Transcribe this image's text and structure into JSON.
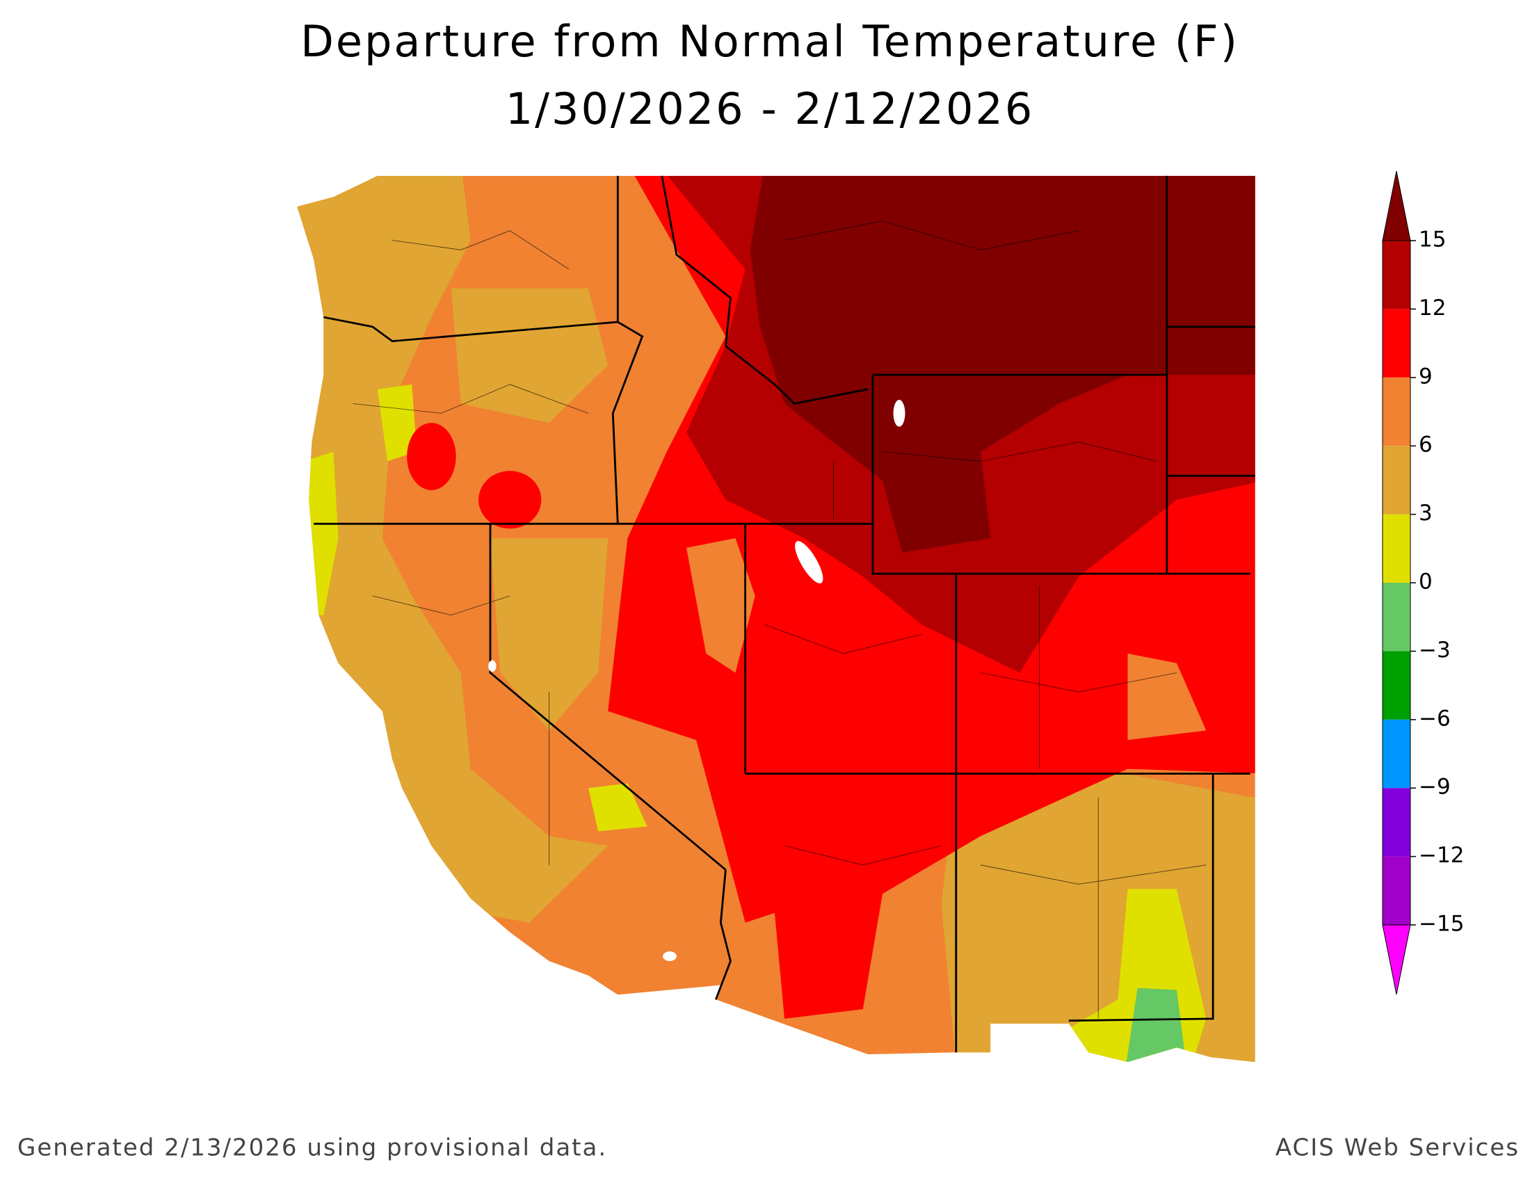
{
  "title": "Departure from Normal Temperature (F)",
  "subtitle": "1/30/2026 - 2/12/2026",
  "legend": {
    "ticks": [
      15,
      12,
      9,
      6,
      3,
      0,
      {
        "value": -3,
        "label": "−3"
      },
      {
        "value": -6,
        "label": "−6"
      },
      {
        "value": -9,
        "label": "−9"
      },
      {
        "value": -12,
        "label": "−12"
      },
      {
        "value": -15,
        "label": "−15"
      }
    ],
    "colors": [
      "#800000",
      "#b40000",
      "#ff0000",
      "#f08232",
      "#e0a532",
      "#e0e000",
      "#66c864",
      "#00a000",
      "#0096ff",
      "#8200dc",
      "#a000c8",
      "#ff00ff"
    ]
  },
  "footer_left": "Generated 2/13/2026 using provisional data.",
  "footer_right": "ACIS Web Services"
}
